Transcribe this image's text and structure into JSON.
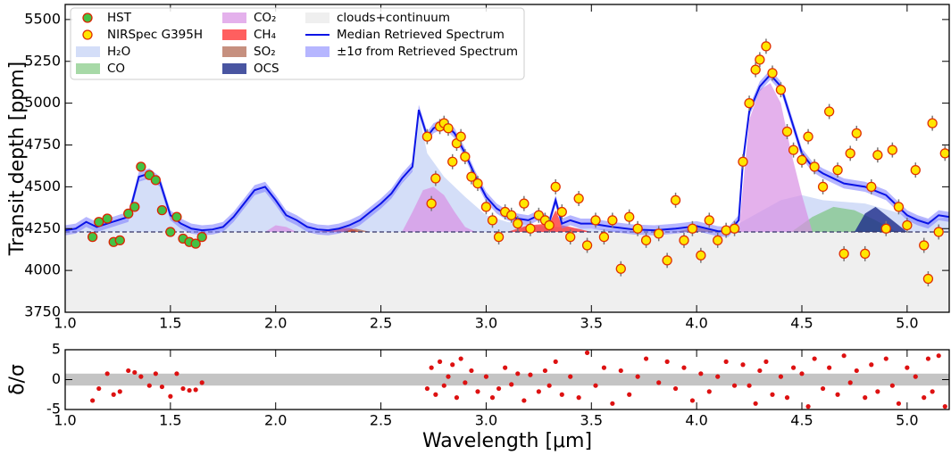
{
  "chart_data": [
    {
      "type": "scatter",
      "ylabel": "Transit depth [ppm]",
      "xlim": [
        1.0,
        5.2
      ],
      "ylim": [
        3750,
        5590
      ],
      "xticks": [
        {
          "value": 1.0,
          "label": "1.0"
        },
        {
          "value": 1.5,
          "label": "1.5"
        },
        {
          "value": 2.0,
          "label": "2.0"
        },
        {
          "value": 2.5,
          "label": "2.5"
        },
        {
          "value": 3.0,
          "label": "3.0"
        },
        {
          "value": 3.5,
          "label": "3.5"
        },
        {
          "value": 4.0,
          "label": "4.0"
        },
        {
          "value": 4.5,
          "label": "4.5"
        },
        {
          "value": 5.0,
          "label": "5.0"
        }
      ],
      "yticks": [
        3750,
        4000,
        4250,
        4500,
        4750,
        5000,
        5250,
        5500
      ],
      "legend": "upper left",
      "series": [
        {
          "name": "HST",
          "kind": "points",
          "color": "#44c244",
          "edge": "#dd2200",
          "error": 20,
          "x": [
            1.13,
            1.16,
            1.2,
            1.23,
            1.26,
            1.3,
            1.33,
            1.36,
            1.4,
            1.43,
            1.46,
            1.5,
            1.53,
            1.56,
            1.59,
            1.62,
            1.65
          ],
          "values": [
            4200,
            4290,
            4310,
            4170,
            4180,
            4340,
            4380,
            4620,
            4570,
            4540,
            4360,
            4230,
            4320,
            4190,
            4170,
            4160,
            4200
          ]
        },
        {
          "name": "NIRSpec G395H",
          "kind": "points",
          "color": "#ffe600",
          "edge": "#e03000",
          "error": 45,
          "x": [
            2.72,
            2.74,
            2.76,
            2.78,
            2.8,
            2.82,
            2.84,
            2.86,
            2.88,
            2.9,
            2.93,
            2.96,
            3.0,
            3.03,
            3.06,
            3.09,
            3.12,
            3.15,
            3.18,
            3.21,
            3.25,
            3.28,
            3.3,
            3.33,
            3.36,
            3.4,
            3.44,
            3.48,
            3.52,
            3.56,
            3.6,
            3.64,
            3.68,
            3.72,
            3.76,
            3.82,
            3.86,
            3.9,
            3.94,
            3.98,
            4.02,
            4.06,
            4.1,
            4.14,
            4.18,
            4.22,
            4.25,
            4.28,
            4.3,
            4.33,
            4.36,
            4.4,
            4.43,
            4.46,
            4.5,
            4.53,
            4.56,
            4.6,
            4.63,
            4.67,
            4.7,
            4.73,
            4.76,
            4.8,
            4.83,
            4.86,
            4.9,
            4.93,
            4.96,
            5.0,
            5.04,
            5.08,
            5.1,
            5.12,
            5.15,
            5.18
          ],
          "values": [
            4800,
            4400,
            4550,
            4860,
            4880,
            4850,
            4650,
            4760,
            4800,
            4680,
            4560,
            4520,
            4380,
            4300,
            4200,
            4350,
            4330,
            4280,
            4400,
            4250,
            4330,
            4300,
            4270,
            4500,
            4350,
            4200,
            4430,
            4150,
            4300,
            4200,
            4300,
            4010,
            4320,
            4250,
            4180,
            4220,
            4060,
            4420,
            4180,
            4250,
            4090,
            4300,
            4180,
            4240,
            4250,
            4650,
            5000,
            5200,
            5260,
            5340,
            5180,
            5080,
            4830,
            4720,
            4660,
            4800,
            4620,
            4500,
            4950,
            4600,
            4100,
            4700,
            4820,
            4100,
            4500,
            4690,
            4250,
            4720,
            4380,
            4270,
            4600,
            4150,
            3950,
            4880,
            4230,
            4700
          ]
        },
        {
          "name": "H₂O",
          "kind": "area",
          "color": "#c5d3f5",
          "alpha": 0.75,
          "x": [
            1.0,
            1.05,
            1.1,
            1.15,
            1.2,
            1.25,
            1.3,
            1.35,
            1.4,
            1.45,
            1.5,
            1.55,
            1.6,
            1.65,
            1.7,
            1.75,
            1.8,
            1.85,
            1.9,
            1.95,
            2.0,
            2.05,
            2.1,
            2.15,
            2.2,
            2.25,
            2.3,
            2.35,
            2.4,
            2.45,
            2.5,
            2.55,
            2.6,
            2.65,
            2.68,
            2.72,
            2.8,
            2.9,
            3.0,
            3.1,
            3.2,
            3.4,
            3.6,
            3.8,
            4.0,
            4.1,
            4.2,
            4.4,
            4.5,
            4.6,
            4.8,
            5.0,
            5.1,
            5.2
          ],
          "values": [
            4235,
            4245,
            4280,
            4255,
            4270,
            4290,
            4310,
            4540,
            4560,
            4510,
            4320,
            4270,
            4245,
            4235,
            4240,
            4255,
            4310,
            4390,
            4470,
            4490,
            4410,
            4320,
            4290,
            4255,
            4240,
            4235,
            4245,
            4265,
            4295,
            4340,
            4390,
            4450,
            4530,
            4600,
            4940,
            4700,
            4560,
            4440,
            4330,
            4290,
            4270,
            4255,
            4245,
            4240,
            4255,
            4235,
            4280,
            4420,
            4450,
            4420,
            4400,
            4330,
            4300,
            4320
          ]
        },
        {
          "name": "CO",
          "kind": "area",
          "color": "#6cc06c",
          "alpha": 0.6,
          "x": [
            4.45,
            4.55,
            4.65,
            4.75,
            4.85,
            4.95
          ],
          "values": [
            4230,
            4320,
            4380,
            4360,
            4300,
            4230
          ]
        },
        {
          "name": "CO₂",
          "kind": "area",
          "color": "#d890e4",
          "alpha": 0.7,
          "x": [
            1.95,
            2.0,
            2.05,
            2.1,
            2.3,
            2.6,
            2.65,
            2.7,
            2.75,
            2.8,
            2.85,
            2.9,
            2.95,
            3.5,
            4.2,
            4.25,
            4.3,
            4.35,
            4.4,
            4.45,
            4.5,
            4.55
          ],
          "values": [
            4230,
            4270,
            4260,
            4230,
            null,
            4230,
            4350,
            4480,
            4500,
            4450,
            4350,
            4260,
            4230,
            null,
            4230,
            4900,
            5080,
            5120,
            5000,
            4700,
            4450,
            4230
          ]
        },
        {
          "name": "CH₄",
          "kind": "area",
          "color": "#ff2a2a",
          "alpha": 0.75,
          "x": [
            2.2,
            2.3,
            2.35,
            2.4,
            2.7,
            3.1,
            3.2,
            3.3,
            3.33,
            3.36,
            3.4,
            3.5
          ],
          "values": [
            4230,
            4250,
            4255,
            4230,
            null,
            4230,
            4270,
            4280,
            4360,
            4270,
            4260,
            4230
          ]
        },
        {
          "name": "SO₂",
          "kind": "area",
          "color": "#a8553a",
          "alpha": 0.65,
          "x": [
            2.3,
            2.38,
            2.45,
            2.6,
            3.9,
            4.0,
            4.1
          ],
          "values": [
            4230,
            4250,
            4230,
            null,
            4230,
            4260,
            4230
          ]
        },
        {
          "name": "OCS",
          "kind": "area",
          "color": "#1c2a8a",
          "alpha": 0.8,
          "x": [
            4.75,
            4.8,
            4.85,
            4.9,
            4.95,
            5.0
          ],
          "values": [
            4230,
            4340,
            4380,
            4330,
            4280,
            4230
          ]
        },
        {
          "name": "clouds+continuum",
          "kind": "area",
          "color": "#efefef",
          "alpha": 1,
          "edge": "#333366",
          "x": [
            1.0,
            5.2
          ],
          "values": [
            4230,
            4230
          ]
        },
        {
          "name": "Median Retrieved Spectrum",
          "kind": "line",
          "color": "#0a14e6",
          "x": [
            1.0,
            1.05,
            1.1,
            1.15,
            1.2,
            1.25,
            1.3,
            1.35,
            1.4,
            1.45,
            1.5,
            1.55,
            1.6,
            1.65,
            1.7,
            1.75,
            1.8,
            1.85,
            1.9,
            1.95,
            2.0,
            2.05,
            2.1,
            2.15,
            2.2,
            2.25,
            2.3,
            2.35,
            2.4,
            2.45,
            2.5,
            2.55,
            2.6,
            2.65,
            2.68,
            2.72,
            2.75,
            2.8,
            2.85,
            2.9,
            2.95,
            3.0,
            3.05,
            3.1,
            3.15,
            3.2,
            3.25,
            3.3,
            3.33,
            3.36,
            3.4,
            3.45,
            3.5,
            3.55,
            3.6,
            3.7,
            3.8,
            3.9,
            4.0,
            4.1,
            4.15,
            4.2,
            4.22,
            4.25,
            4.3,
            4.35,
            4.4,
            4.45,
            4.5,
            4.55,
            4.6,
            4.7,
            4.8,
            4.9,
            5.0,
            5.05,
            5.1,
            5.15,
            5.2
          ],
          "values": [
            4240,
            4250,
            4290,
            4260,
            4280,
            4300,
            4320,
            4560,
            4580,
            4530,
            4330,
            4280,
            4250,
            4240,
            4245,
            4260,
            4320,
            4400,
            4480,
            4500,
            4420,
            4330,
            4300,
            4260,
            4245,
            4240,
            4250,
            4270,
            4300,
            4350,
            4400,
            4460,
            4550,
            4620,
            4960,
            4800,
            4850,
            4880,
            4820,
            4700,
            4560,
            4440,
            4370,
            4330,
            4310,
            4300,
            4330,
            4290,
            4420,
            4280,
            4300,
            4280,
            4280,
            4270,
            4260,
            4245,
            4240,
            4250,
            4265,
            4235,
            4230,
            4300,
            4650,
            4950,
            5100,
            5170,
            5100,
            4900,
            4700,
            4620,
            4580,
            4520,
            4500,
            4450,
            4330,
            4300,
            4280,
            4330,
            4320
          ]
        },
        {
          "name": "±1σ from Retrieved Spectrum",
          "kind": "band",
          "color": "#7a7aff",
          "alpha": 0.55,
          "halfwidth": 30
        }
      ]
    },
    {
      "type": "scatter",
      "ylabel": "δ/σ",
      "xlabel": "Wavelength [μm]",
      "xlim": [
        1.0,
        5.2
      ],
      "ylim": [
        -5,
        5
      ],
      "xticks": [
        {
          "value": 1.0,
          "label": "1.0"
        },
        {
          "value": 1.5,
          "label": "1.5"
        },
        {
          "value": 2.0,
          "label": "2.0"
        },
        {
          "value": 2.5,
          "label": "2.5"
        },
        {
          "value": 3.0,
          "label": "3.0"
        },
        {
          "value": 3.5,
          "label": "3.5"
        },
        {
          "value": 4.0,
          "label": "4.0"
        },
        {
          "value": 4.5,
          "label": "4.5"
        },
        {
          "value": 5.0,
          "label": "5.0"
        }
      ],
      "yticks": [
        -5,
        0,
        5
      ],
      "shade": [
        -1,
        1
      ],
      "shade_color": "#c4c4c4",
      "series": [
        {
          "kind": "points",
          "color": "#dd1111",
          "x": [
            1.13,
            1.16,
            1.2,
            1.23,
            1.26,
            1.3,
            1.33,
            1.36,
            1.4,
            1.43,
            1.46,
            1.5,
            1.53,
            1.56,
            1.59,
            1.62,
            1.65,
            2.72,
            2.74,
            2.76,
            2.78,
            2.8,
            2.82,
            2.84,
            2.86,
            2.88,
            2.9,
            2.93,
            2.96,
            3.0,
            3.03,
            3.06,
            3.09,
            3.12,
            3.15,
            3.18,
            3.21,
            3.25,
            3.28,
            3.3,
            3.33,
            3.36,
            3.4,
            3.44,
            3.48,
            3.52,
            3.56,
            3.6,
            3.64,
            3.68,
            3.72,
            3.76,
            3.82,
            3.86,
            3.9,
            3.94,
            3.98,
            4.02,
            4.06,
            4.1,
            4.14,
            4.18,
            4.22,
            4.25,
            4.28,
            4.3,
            4.33,
            4.36,
            4.4,
            4.43,
            4.46,
            4.5,
            4.53,
            4.56,
            4.6,
            4.63,
            4.67,
            4.7,
            4.73,
            4.76,
            4.8,
            4.83,
            4.86,
            4.9,
            4.93,
            4.96,
            5.0,
            5.04,
            5.08,
            5.1,
            5.12,
            5.15,
            5.18
          ],
          "values": [
            -3.5,
            -1.5,
            1,
            -2.5,
            -2,
            1.5,
            1.2,
            0.5,
            -1,
            1,
            -1.2,
            -2.8,
            1,
            -1.5,
            -1.8,
            -1.7,
            -0.5,
            -1.5,
            2,
            -2.5,
            3,
            -1,
            0.5,
            2.5,
            -3,
            3.5,
            -0.5,
            1.5,
            -2,
            0.5,
            -3,
            -1.5,
            2,
            -0.8,
            1,
            -3.5,
            0.8,
            -2,
            1.5,
            -1,
            3,
            -2.5,
            0.5,
            -3,
            4.5,
            -1,
            2,
            -4,
            1.5,
            -2.5,
            0.5,
            3.5,
            -0.5,
            3,
            -1.5,
            2,
            -3.5,
            1,
            -2,
            0.5,
            3,
            -1,
            2.5,
            -1,
            -4,
            1.5,
            3,
            -2.5,
            0.5,
            -3,
            2,
            1,
            -4.5,
            3.5,
            -1.5,
            2,
            -2.5,
            4,
            -0.5,
            1.5,
            -3,
            2.5,
            -2,
            3.5,
            -1,
            -4,
            2,
            0.5,
            -3,
            3.5,
            -2,
            4,
            -4.5
          ]
        }
      ]
    }
  ]
}
